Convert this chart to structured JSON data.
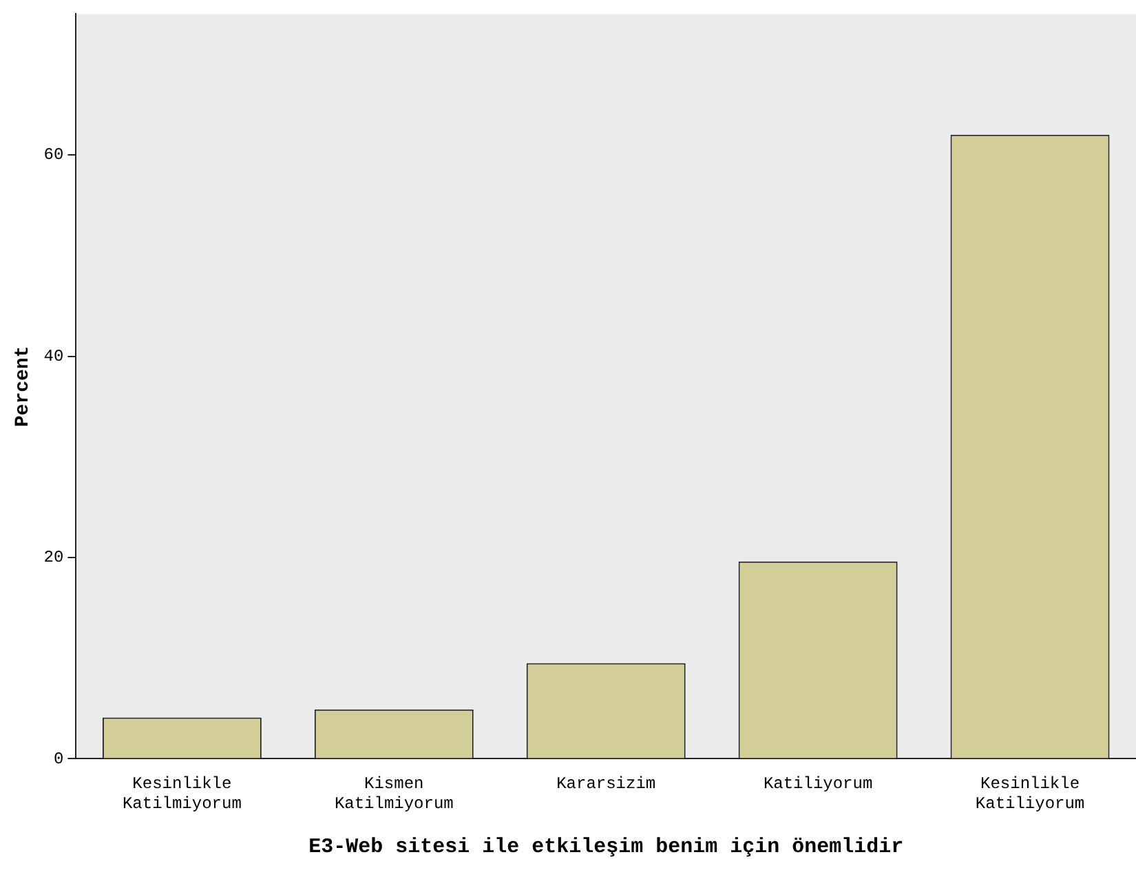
{
  "chart_data": {
    "type": "bar",
    "xlabel": "E3-Web sitesi ile etkileşim benim için önemlidir",
    "ylabel": "Percent",
    "categories": [
      "Kesinlikle Katilmiyorum",
      "Kismen Katilmiyorum",
      "Kararsizim",
      "Katiliyorum",
      "Kesinlikle Katiliyorum"
    ],
    "values": [
      4.1,
      4.9,
      9.5,
      19.6,
      62.0
    ],
    "color": "#d3ce97",
    "ylim": [
      0,
      74
    ],
    "yticks": [
      0,
      20,
      40,
      60
    ],
    "grid": false,
    "legend": false
  }
}
